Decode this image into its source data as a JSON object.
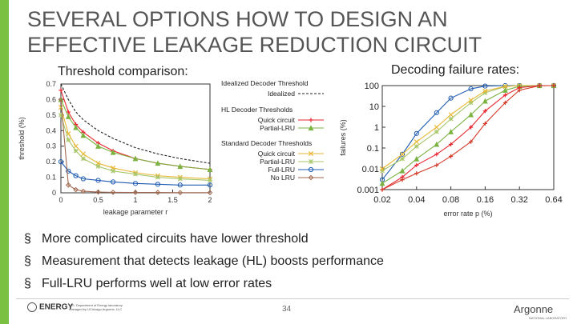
{
  "title": {
    "line1": "SEVERAL OPTIONS HOW TO DESIGN AN",
    "line2": "EFFECTIVE LEAKAGE REDUCTION CIRCUIT"
  },
  "captions": {
    "left": "Threshold comparison:",
    "right": "Decoding failure rates:"
  },
  "bullets": [
    "More complicated circuits have lower threshold",
    "Measurement that detects leakage (HL) boosts performance",
    "Full-LRU performs well at low error rates"
  ],
  "bullet_glyph": "§",
  "footer": {
    "page_number": "34",
    "left_logo_text": "ENERGY",
    "left_logo_small": "U.S. Department of Energy laboratory managed by UChicago Argonne, LLC",
    "right_logo_text": "Argonne",
    "right_logo_small": "NATIONAL LABORATORY"
  },
  "colors": {
    "accent": "#7ac142",
    "red": "#e8252f",
    "green": "#7bb241",
    "yellow": "#e8b735",
    "blue": "#1e5bb0",
    "brown": "#a0674e",
    "black": "#222222"
  },
  "chart_data": [
    {
      "type": "line",
      "title": "Threshold comparison:",
      "xlabel": "leakage parameter r",
      "ylabel": "threshold (%)",
      "xlim": [
        0,
        2
      ],
      "ylim": [
        0,
        0.7
      ],
      "xticks": [
        "0",
        "0.5",
        "1",
        "1.5",
        "2"
      ],
      "yticks": [
        "0",
        "0.1",
        "0.2",
        "0.3",
        "0.4",
        "0.5",
        "0.6",
        "0.7"
      ],
      "legend": {
        "groups": [
          {
            "heading": "Idealized Decoder Threshold",
            "entries": [
              "Idealized"
            ]
          },
          {
            "heading": "HL Decoder Thresholds",
            "entries": [
              "Quick circuit",
              "Partial-LRU"
            ]
          },
          {
            "heading": "Standard Decoder Thresholds",
            "entries": [
              "Quick circuit",
              "Partial-LRU",
              "Full-LRU",
              "No LRU"
            ]
          }
        ]
      },
      "x": [
        0,
        0.1,
        0.2,
        0.3,
        0.5,
        0.7,
        1.0,
        1.3,
        1.6,
        2.0
      ],
      "series": [
        {
          "name": "Idealized",
          "color": "#222222",
          "dash": true,
          "marker": "none",
          "values": [
            0.7,
            0.6,
            0.52,
            0.47,
            0.4,
            0.35,
            0.29,
            0.25,
            0.22,
            0.19
          ]
        },
        {
          "name": "HL Quick circuit",
          "color": "#e8252f",
          "marker": "plus",
          "values": [
            0.66,
            0.52,
            0.44,
            0.39,
            0.32,
            0.27,
            0.22,
            0.19,
            0.17,
            0.15
          ]
        },
        {
          "name": "HL Partial-LRU",
          "color": "#7bb241",
          "marker": "triangle",
          "values": [
            0.6,
            0.49,
            0.42,
            0.37,
            0.3,
            0.26,
            0.22,
            0.19,
            0.17,
            0.15
          ]
        },
        {
          "name": "Standard Quick circuit",
          "color": "#e8b735",
          "marker": "x",
          "values": [
            0.55,
            0.38,
            0.3,
            0.25,
            0.19,
            0.16,
            0.13,
            0.11,
            0.1,
            0.09
          ]
        },
        {
          "name": "Standard Partial-LRU",
          "color": "#a8c66a",
          "marker": "star",
          "values": [
            0.5,
            0.34,
            0.27,
            0.22,
            0.17,
            0.14,
            0.12,
            0.1,
            0.09,
            0.08
          ]
        },
        {
          "name": "Full-LRU",
          "color": "#1e5bb0",
          "marker": "circle",
          "values": [
            0.2,
            0.14,
            0.11,
            0.09,
            0.08,
            0.07,
            0.06,
            0.055,
            0.05,
            0.05
          ]
        },
        {
          "name": "No LRU",
          "color": "#a0674e",
          "marker": "diamond",
          "values": [
            0.6,
            0.05,
            0.02,
            0.01,
            0.005,
            0.003,
            0.002,
            0.002,
            0.001,
            0.001
          ]
        }
      ]
    },
    {
      "type": "line",
      "title": "Decoding failure rates:",
      "xlabel": "error rate p (%)",
      "ylabel": "failures (%)",
      "xscale": "log",
      "yscale": "log",
      "xlim": [
        0.02,
        0.64
      ],
      "ylim": [
        0.001,
        100
      ],
      "xticks": [
        "0.02",
        "0.04",
        "0.08",
        "0.16",
        "0.32",
        "0.64"
      ],
      "yticks": [
        "0.001",
        "0.01",
        "0.1",
        "1",
        "10",
        "100"
      ],
      "x": [
        0.02,
        0.03,
        0.04,
        0.06,
        0.08,
        0.12,
        0.16,
        0.24,
        0.32,
        0.48,
        0.64
      ],
      "series": [
        {
          "name": "Full-LRU",
          "color": "#1e5bb0",
          "marker": "circle",
          "values": [
            0.003,
            0.05,
            0.5,
            5,
            25,
            70,
            95,
            100,
            100,
            100,
            100
          ]
        },
        {
          "name": "Standard Partial-LRU",
          "color": "#a8c66a",
          "marker": "star",
          "values": [
            0.008,
            0.03,
            0.12,
            0.6,
            2.5,
            15,
            45,
            90,
            100,
            100,
            100
          ]
        },
        {
          "name": "Standard Quick circuit",
          "color": "#e8b735",
          "marker": "x",
          "values": [
            0.01,
            0.05,
            0.2,
            1,
            4,
            20,
            55,
            92,
            100,
            100,
            100
          ]
        },
        {
          "name": "HL Partial-LRU",
          "color": "#7bb241",
          "marker": "triangle",
          "values": [
            0.002,
            0.008,
            0.03,
            0.15,
            0.6,
            4,
            18,
            60,
            92,
            100,
            100
          ]
        },
        {
          "name": "HL Quick circuit",
          "color": "#e8252f",
          "marker": "plus",
          "values": [
            0.001,
            0.004,
            0.015,
            0.05,
            0.15,
            1,
            6,
            35,
            80,
            100,
            100
          ]
        },
        {
          "name": "No LRU",
          "color": "#d43a2a",
          "marker": "plus",
          "values": [
            0.001,
            0.003,
            0.006,
            0.015,
            0.04,
            0.2,
            1.5,
            15,
            60,
            98,
            100
          ]
        }
      ]
    }
  ]
}
